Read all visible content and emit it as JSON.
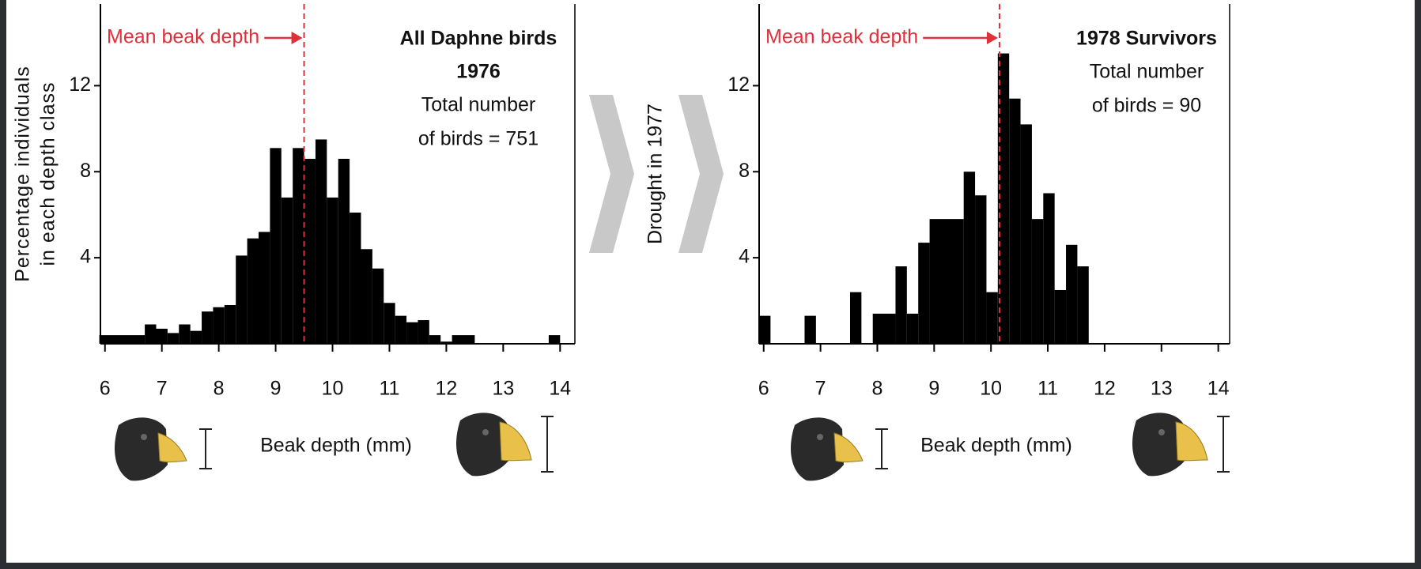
{
  "chart_data": [
    {
      "type": "histogram",
      "title": [
        "All Daphne birds",
        "1976"
      ],
      "subtitle": [
        "Total number",
        "of birds = 751"
      ],
      "ylabel": [
        "Percentage individuals",
        "in each depth class"
      ],
      "xlabel": "Beak depth (mm)",
      "mean_label": "Mean beak depth",
      "mean": 9.5,
      "mean_color": "#e0303a",
      "bins": [
        5.9,
        6.7,
        6.9,
        7.1,
        7.3,
        7.5,
        7.7,
        7.9,
        8.1,
        8.3,
        8.5,
        8.7,
        8.9,
        9.1,
        9.3,
        9.5,
        9.7,
        9.9,
        10.1,
        10.3,
        10.5,
        10.7,
        10.9,
        11.1,
        11.3,
        11.5,
        11.7,
        11.9,
        12.1,
        12.5,
        13.8,
        14.0
      ],
      "values": [
        0.4,
        0.9,
        0.7,
        0.5,
        0.9,
        0.6,
        1.5,
        1.7,
        1.8,
        4.1,
        4.9,
        5.2,
        9.1,
        6.8,
        9.1,
        8.6,
        9.5,
        6.8,
        8.6,
        6.1,
        4.4,
        3.5,
        1.9,
        1.3,
        1.0,
        1.1,
        0.4,
        0.1,
        0.4,
        0,
        0.4
      ],
      "color": "#000000",
      "xlim": [
        5.92,
        14.26
      ],
      "ylim": [
        0,
        15.8
      ],
      "xticks": [
        6,
        7,
        8,
        9,
        10,
        11,
        12,
        13,
        14
      ],
      "yticks": [
        4,
        8,
        12
      ]
    },
    {
      "type": "histogram",
      "title": [
        "1978 Survivors"
      ],
      "subtitle": [
        "Total number",
        "of birds = 90"
      ],
      "xlabel": "Beak depth (mm)",
      "mean_label": "Mean beak depth",
      "mean": 10.15,
      "mean_color": "#e0303a",
      "bins": [
        5.92,
        6.12,
        6.72,
        6.92,
        7.52,
        7.72,
        7.92,
        8.32,
        8.52,
        8.72,
        8.92,
        9.52,
        9.72,
        9.92,
        10.12,
        10.32,
        10.52,
        10.72,
        10.92,
        11.12,
        11.32,
        11.52,
        11.72
      ],
      "values": [
        1.3,
        0,
        1.3,
        0,
        2.4,
        0,
        1.4,
        3.6,
        1.4,
        4.7,
        5.8,
        8.0,
        6.9,
        2.4,
        13.5,
        11.4,
        10.2,
        5.8,
        7.0,
        2.5,
        4.6,
        3.6
      ],
      "color": "#000000",
      "xlim": [
        5.92,
        14.2
      ],
      "ylim": [
        0,
        15.8
      ],
      "xticks": [
        6,
        7,
        8,
        9,
        10,
        11,
        12,
        13,
        14
      ],
      "yticks": [
        4,
        8,
        12
      ]
    }
  ],
  "drought_label": "Drought in 1977"
}
